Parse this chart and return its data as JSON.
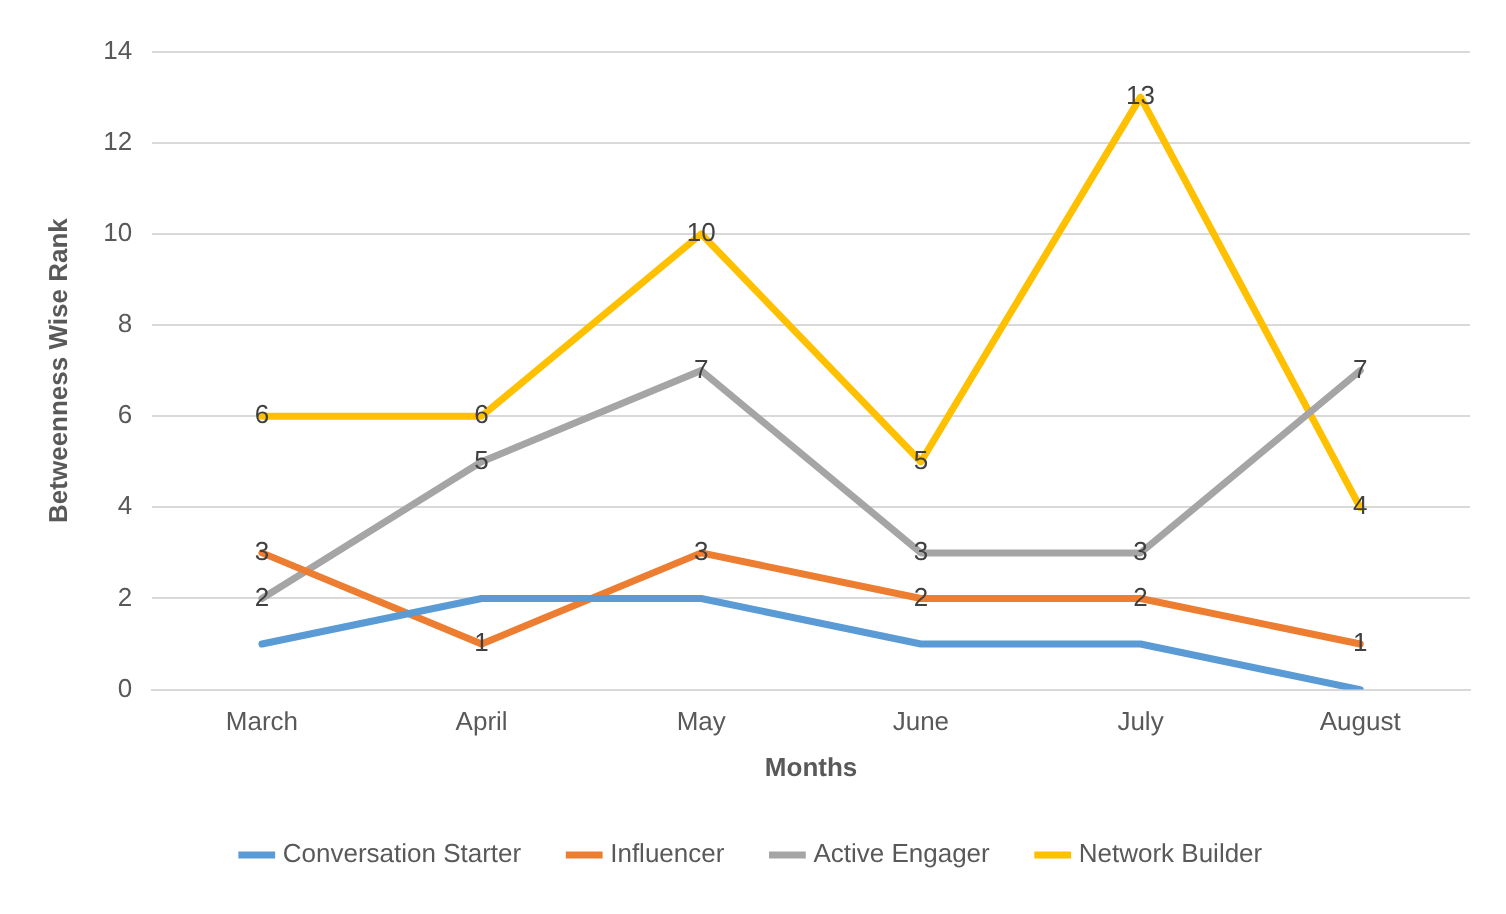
{
  "chart_data": {
    "type": "line",
    "xlabel": "Months",
    "ylabel": "Betweenness Wise Rank",
    "categories": [
      "March",
      "April",
      "May",
      "June",
      "July",
      "August"
    ],
    "series": [
      {
        "name": "Conversation Starter",
        "color": "#5b9bd5",
        "values": [
          1,
          2,
          2,
          1,
          1,
          0
        ]
      },
      {
        "name": "Influencer",
        "color": "#ed7d31",
        "values": [
          3,
          1,
          3,
          2,
          2,
          1
        ],
        "value_labels": [
          "3",
          "1",
          "3",
          "2",
          "2",
          "1"
        ]
      },
      {
        "name": "Active Engager",
        "color": "#a5a5a5",
        "values": [
          2,
          5,
          7,
          3,
          3,
          7
        ],
        "value_labels": [
          "2",
          "5",
          "7",
          "3",
          "3",
          "7"
        ]
      },
      {
        "name": "Network Builder",
        "color": "#ffc000",
        "values": [
          6,
          6,
          10,
          5,
          13,
          4
        ],
        "value_labels": [
          "6",
          "6",
          "10",
          "5",
          "13",
          "4"
        ]
      }
    ],
    "ylim": [
      0,
      14
    ],
    "yticks": [
      0,
      2,
      4,
      6,
      8,
      10,
      12,
      14
    ],
    "grid": "y",
    "legend": "bottom",
    "marker": "none",
    "line_style": "solid"
  }
}
